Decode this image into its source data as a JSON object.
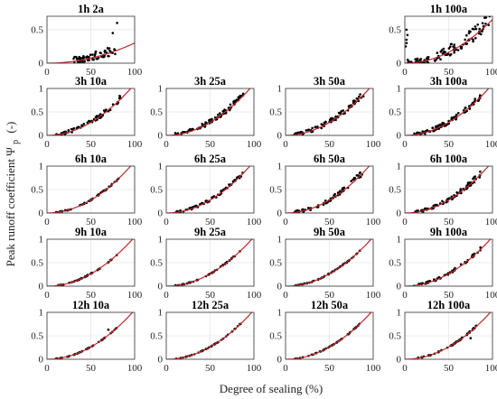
{
  "figure": {
    "ylabel": "Peak runoff coefficient Ψ",
    "ylabel_sub": "p",
    "ylabel_unit": "(-)",
    "xlabel": "Degree of sealing (%)"
  },
  "colors": {
    "curve": "#c0282d",
    "points": "#000000",
    "grid": "#e6e6e6",
    "frame": "#333333"
  },
  "chart_data": [
    {
      "type": "scatter",
      "title": "1h 2a",
      "row": 0,
      "col": 0,
      "xlim": [
        0,
        100
      ],
      "ylim": [
        0,
        0.7
      ],
      "yticks": [
        0,
        0.5
      ],
      "xticks": [
        0,
        50,
        100
      ],
      "curve": {
        "a": 3e-05,
        "b": 2
      },
      "scatter": {
        "xmin": 30,
        "xmax": 78,
        "spread": 0.06,
        "n": 70,
        "extra": [
          [
            80,
            0.6
          ],
          [
            75,
            0.45
          ]
        ]
      }
    },
    {
      "type": "scatter",
      "title": "1h 100a",
      "row": 0,
      "col": 3,
      "xlim": [
        0,
        100
      ],
      "ylim": [
        0,
        0.7
      ],
      "yticks": [
        0,
        0.5
      ],
      "xticks": [
        0,
        50,
        100
      ],
      "curve": {
        "a": 6.5e-05,
        "b": 2
      },
      "scatter": {
        "xmin": 2,
        "xmax": 98,
        "spread": 0.08,
        "n": 110,
        "extra": [
          [
            2,
            0.5
          ],
          [
            3,
            0.42
          ],
          [
            2,
            0.35
          ],
          [
            2,
            0.3
          ],
          [
            1,
            0.25
          ]
        ]
      }
    },
    {
      "type": "scatter",
      "title": "3h 10a",
      "row": 1,
      "col": 0,
      "xlim": [
        0,
        100
      ],
      "ylim": [
        0,
        1
      ],
      "yticks": [
        0,
        0.5,
        1
      ],
      "xticks": [
        0,
        50,
        100
      ],
      "curve": {
        "a": 0.00012,
        "b": 1.98
      },
      "scatter": {
        "xmin": 10,
        "xmax": 85,
        "spread": 0.05,
        "n": 70
      }
    },
    {
      "type": "scatter",
      "title": "3h 25a",
      "row": 1,
      "col": 1,
      "xlim": [
        0,
        100
      ],
      "ylim": [
        0,
        1
      ],
      "yticks": [
        0,
        0.5,
        1
      ],
      "xticks": [
        0,
        50,
        100
      ],
      "curve": {
        "a": 0.00012,
        "b": 1.98
      },
      "scatter": {
        "xmin": 10,
        "xmax": 90,
        "spread": 0.05,
        "n": 90
      }
    },
    {
      "type": "scatter",
      "title": "3h 50a",
      "row": 1,
      "col": 2,
      "xlim": [
        0,
        100
      ],
      "ylim": [
        0,
        1
      ],
      "yticks": [
        0,
        0.5,
        1
      ],
      "xticks": [
        0,
        50,
        100
      ],
      "curve": {
        "a": 0.00012,
        "b": 1.98
      },
      "scatter": {
        "xmin": 10,
        "xmax": 90,
        "spread": 0.05,
        "n": 90
      }
    },
    {
      "type": "scatter",
      "title": "3h 100a",
      "row": 1,
      "col": 3,
      "xlim": [
        0,
        100
      ],
      "ylim": [
        0,
        1
      ],
      "yticks": [
        0,
        0.5,
        1
      ],
      "xticks": [
        0,
        50,
        100
      ],
      "curve": {
        "a": 0.00012,
        "b": 1.98
      },
      "scatter": {
        "xmin": 10,
        "xmax": 90,
        "spread": 0.05,
        "n": 95
      }
    },
    {
      "type": "scatter",
      "title": "6h 10a",
      "row": 2,
      "col": 0,
      "xlim": [
        0,
        100
      ],
      "ylim": [
        0,
        1
      ],
      "yticks": [
        0,
        0.5,
        1
      ],
      "xticks": [
        0,
        50,
        100
      ],
      "curve": {
        "a": 0.00011,
        "b": 2
      },
      "scatter": {
        "xmin": 10,
        "xmax": 85,
        "spread": 0.012,
        "n": 50
      }
    },
    {
      "type": "scatter",
      "title": "6h 25a",
      "row": 2,
      "col": 1,
      "xlim": [
        0,
        100
      ],
      "ylim": [
        0,
        1
      ],
      "yticks": [
        0,
        0.5,
        1
      ],
      "xticks": [
        0,
        50,
        100
      ],
      "curve": {
        "a": 0.00011,
        "b": 2
      },
      "scatter": {
        "xmin": 10,
        "xmax": 88,
        "spread": 0.03,
        "n": 70
      }
    },
    {
      "type": "scatter",
      "title": "6h 50a",
      "row": 2,
      "col": 2,
      "xlim": [
        0,
        100
      ],
      "ylim": [
        0,
        1
      ],
      "yticks": [
        0,
        0.5,
        1
      ],
      "xticks": [
        0,
        50,
        100
      ],
      "curve": {
        "a": 0.00011,
        "b": 2
      },
      "scatter": {
        "xmin": 10,
        "xmax": 88,
        "spread": 0.045,
        "n": 80
      }
    },
    {
      "type": "scatter",
      "title": "6h 100a",
      "row": 2,
      "col": 3,
      "xlim": [
        0,
        100
      ],
      "ylim": [
        0,
        1
      ],
      "yticks": [
        0,
        0.5,
        1
      ],
      "xticks": [
        0,
        50,
        100
      ],
      "curve": {
        "a": 0.00011,
        "b": 2
      },
      "scatter": {
        "xmin": 10,
        "xmax": 88,
        "spread": 0.045,
        "n": 85
      }
    },
    {
      "type": "scatter",
      "title": "9h 10a",
      "row": 3,
      "col": 0,
      "xlim": [
        0,
        100
      ],
      "ylim": [
        0,
        1
      ],
      "yticks": [
        0,
        0.5,
        1
      ],
      "xticks": [
        0,
        50,
        100
      ],
      "curve": {
        "a": 0.000105,
        "b": 2
      },
      "scatter": {
        "xmin": 10,
        "xmax": 80,
        "spread": 0.008,
        "n": 45
      }
    },
    {
      "type": "scatter",
      "title": "9h 25a",
      "row": 3,
      "col": 1,
      "xlim": [
        0,
        100
      ],
      "ylim": [
        0,
        1
      ],
      "yticks": [
        0,
        0.5,
        1
      ],
      "xticks": [
        0,
        50,
        100
      ],
      "curve": {
        "a": 0.000105,
        "b": 2
      },
      "scatter": {
        "xmin": 10,
        "xmax": 85,
        "spread": 0.01,
        "n": 50
      }
    },
    {
      "type": "scatter",
      "title": "9h 50a",
      "row": 3,
      "col": 2,
      "xlim": [
        0,
        100
      ],
      "ylim": [
        0,
        1
      ],
      "yticks": [
        0,
        0.5,
        1
      ],
      "xticks": [
        0,
        50,
        100
      ],
      "curve": {
        "a": 0.000105,
        "b": 2
      },
      "scatter": {
        "xmin": 10,
        "xmax": 85,
        "spread": 0.01,
        "n": 50
      }
    },
    {
      "type": "scatter",
      "title": "9h 100a",
      "row": 3,
      "col": 3,
      "xlim": [
        0,
        100
      ],
      "ylim": [
        0,
        1
      ],
      "yticks": [
        0,
        0.5,
        1
      ],
      "xticks": [
        0,
        50,
        100
      ],
      "curve": {
        "a": 0.000105,
        "b": 2
      },
      "scatter": {
        "xmin": 10,
        "xmax": 88,
        "spread": 0.03,
        "n": 60
      }
    },
    {
      "type": "scatter",
      "title": "12h 10a",
      "row": 4,
      "col": 0,
      "xlim": [
        0,
        100
      ],
      "ylim": [
        0,
        1
      ],
      "yticks": [
        0,
        0.5,
        1
      ],
      "xticks": [
        0,
        50,
        100
      ],
      "curve": {
        "a": 0.000105,
        "b": 2
      },
      "scatter": {
        "xmin": 10,
        "xmax": 80,
        "spread": 0.006,
        "n": 40,
        "extra": [
          [
            70,
            0.63
          ]
        ]
      }
    },
    {
      "type": "scatter",
      "title": "12h 25a",
      "row": 4,
      "col": 1,
      "xlim": [
        0,
        100
      ],
      "ylim": [
        0,
        1
      ],
      "yticks": [
        0,
        0.5,
        1
      ],
      "xticks": [
        0,
        50,
        100
      ],
      "curve": {
        "a": 0.000105,
        "b": 2
      },
      "scatter": {
        "xmin": 10,
        "xmax": 85,
        "spread": 0.006,
        "n": 45
      }
    },
    {
      "type": "scatter",
      "title": "12h 50a",
      "row": 4,
      "col": 2,
      "xlim": [
        0,
        100
      ],
      "ylim": [
        0,
        1
      ],
      "yticks": [
        0,
        0.5,
        1
      ],
      "xticks": [
        0,
        50,
        100
      ],
      "curve": {
        "a": 0.000105,
        "b": 2
      },
      "scatter": {
        "xmin": 10,
        "xmax": 85,
        "spread": 0.006,
        "n": 45
      }
    },
    {
      "type": "scatter",
      "title": "12h 100a",
      "row": 4,
      "col": 3,
      "xlim": [
        0,
        100
      ],
      "ylim": [
        0,
        1
      ],
      "yticks": [
        0,
        0.5,
        1
      ],
      "xticks": [
        0,
        50,
        100
      ],
      "curve": {
        "a": 0.000105,
        "b": 2
      },
      "scatter": {
        "xmin": 10,
        "xmax": 85,
        "spread": 0.012,
        "n": 50,
        "extra": [
          [
            75,
            0.45
          ]
        ]
      }
    }
  ]
}
